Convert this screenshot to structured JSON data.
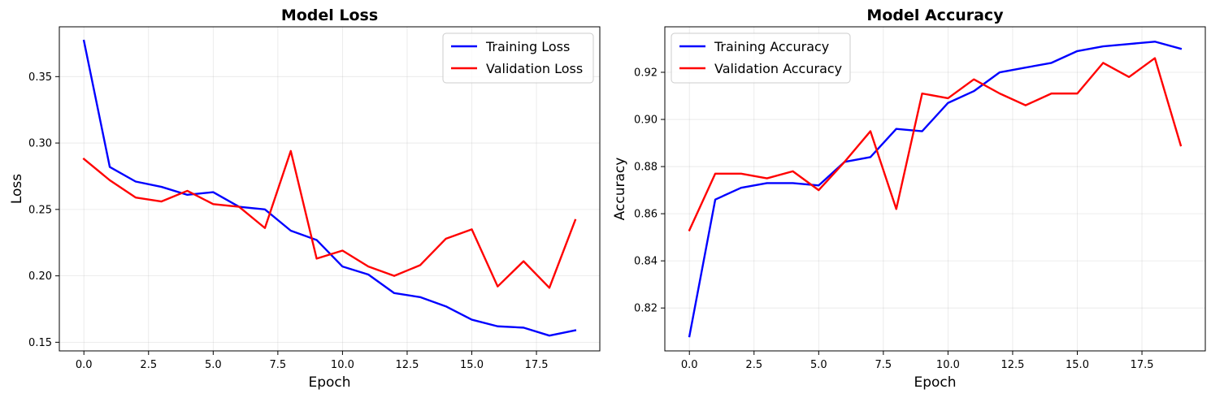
{
  "chart_data": [
    {
      "type": "line",
      "title": "Model Loss",
      "xlabel": "Epoch",
      "ylabel": "Loss",
      "xlim": [
        -0.95,
        19.95
      ],
      "ylim": [
        0.1435,
        0.3875
      ],
      "xticks": [
        0.0,
        2.5,
        5.0,
        7.5,
        10.0,
        12.5,
        15.0,
        17.5
      ],
      "xtick_labels": [
        "0.0",
        "2.5",
        "5.0",
        "7.5",
        "10.0",
        "12.5",
        "15.0",
        "17.5"
      ],
      "yticks": [
        0.15,
        0.2,
        0.25,
        0.3,
        0.35
      ],
      "ytick_labels": [
        "0.15",
        "0.20",
        "0.25",
        "0.30",
        "0.35"
      ],
      "grid": true,
      "legend_position": "top-right",
      "x": [
        0,
        1,
        2,
        3,
        4,
        5,
        6,
        7,
        8,
        9,
        10,
        11,
        12,
        13,
        14,
        15,
        16,
        17,
        18,
        19
      ],
      "series": [
        {
          "name": "Training Loss",
          "color": "#0000ff",
          "values": [
            0.377,
            0.282,
            0.271,
            0.267,
            0.261,
            0.263,
            0.252,
            0.25,
            0.234,
            0.227,
            0.207,
            0.201,
            0.187,
            0.184,
            0.177,
            0.167,
            0.162,
            0.161,
            0.155,
            0.159
          ]
        },
        {
          "name": "Validation Loss",
          "color": "#ff0000",
          "values": [
            0.288,
            0.272,
            0.259,
            0.256,
            0.264,
            0.254,
            0.252,
            0.236,
            0.294,
            0.213,
            0.219,
            0.207,
            0.2,
            0.208,
            0.228,
            0.235,
            0.192,
            0.211,
            0.191,
            0.242
          ]
        }
      ]
    },
    {
      "type": "line",
      "title": "Model Accuracy",
      "xlabel": "Epoch",
      "ylabel": "Accuracy",
      "xlim": [
        -0.95,
        19.95
      ],
      "ylim": [
        0.8018,
        0.9393
      ],
      "xticks": [
        0.0,
        2.5,
        5.0,
        7.5,
        10.0,
        12.5,
        15.0,
        17.5
      ],
      "xtick_labels": [
        "0.0",
        "2.5",
        "5.0",
        "7.5",
        "10.0",
        "12.5",
        "15.0",
        "17.5"
      ],
      "yticks": [
        0.82,
        0.84,
        0.86,
        0.88,
        0.9,
        0.92
      ],
      "ytick_labels": [
        "0.82",
        "0.84",
        "0.86",
        "0.88",
        "0.90",
        "0.92"
      ],
      "grid": true,
      "legend_position": "top-left",
      "x": [
        0,
        1,
        2,
        3,
        4,
        5,
        6,
        7,
        8,
        9,
        10,
        11,
        12,
        13,
        14,
        15,
        16,
        17,
        18,
        19
      ],
      "series": [
        {
          "name": "Training Accuracy",
          "color": "#0000ff",
          "values": [
            0.808,
            0.866,
            0.871,
            0.873,
            0.873,
            0.872,
            0.882,
            0.884,
            0.896,
            0.895,
            0.907,
            0.912,
            0.92,
            0.922,
            0.924,
            0.929,
            0.931,
            0.932,
            0.933,
            0.93
          ]
        },
        {
          "name": "Validation Accuracy",
          "color": "#ff0000",
          "values": [
            0.853,
            0.877,
            0.877,
            0.875,
            0.878,
            0.87,
            0.882,
            0.895,
            0.862,
            0.911,
            0.909,
            0.917,
            0.911,
            0.906,
            0.911,
            0.911,
            0.924,
            0.918,
            0.926,
            0.889
          ]
        }
      ]
    }
  ]
}
